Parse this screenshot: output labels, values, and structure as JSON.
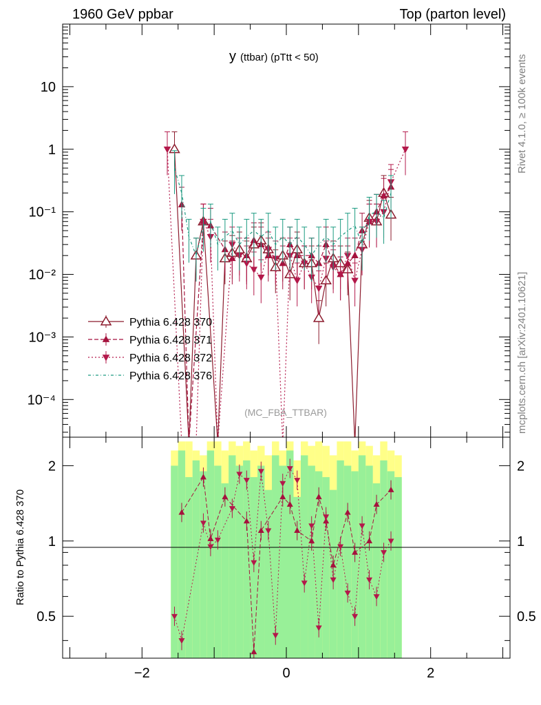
{
  "header": {
    "left_label": "1960 GeV ppbar",
    "right_label": "Top (parton level)",
    "side_label_top": "Rivet 4.1.0, ≥ 100k events",
    "side_label_bottom": "mcplots.cern.ch [arXiv:2401.10621]"
  },
  "chart_data": [
    {
      "type": "line",
      "panel": "main",
      "title_main": "y",
      "title_sub": "(ttbar)  (pTtt < 50)",
      "watermark": "(MC_FBA_TTBAR)",
      "yscale": "log",
      "xlim": [
        -3.1,
        3.1
      ],
      "ylim": [
        2.5e-05,
        100
      ],
      "ytick_labels": [
        {
          "value": 10,
          "label": "10"
        },
        {
          "value": 1,
          "label": "1"
        },
        {
          "value": 0.1,
          "label": "10⁻¹"
        },
        {
          "value": 0.01,
          "label": "10⁻²"
        },
        {
          "value": 0.001,
          "label": "10⁻³"
        },
        {
          "value": 0.0001,
          "label": "10⁻⁴"
        }
      ],
      "legend": [
        {
          "name": "Pythia 6.428 370",
          "color": "#8b1a2c",
          "marker": "triangle-open"
        },
        {
          "name": "Pythia 6.428 371",
          "color": "#a5123d",
          "marker": "triangle-up"
        },
        {
          "name": "Pythia 6.428 372",
          "color": "#b3184a",
          "marker": "triangle-down"
        },
        {
          "name": "Pythia 6.428 376",
          "color": "#1a9a80",
          "marker": "none"
        }
      ],
      "series": [
        {
          "name": "Pythia 6.428 370",
          "x": [
            -1.55,
            -1.35,
            -1.25,
            -1.15,
            -0.95,
            -0.85,
            -0.75,
            -0.65,
            -0.55,
            -0.45,
            -0.35,
            -0.25,
            -0.15,
            -0.05,
            0.05,
            0.15,
            0.25,
            0.35,
            0.45,
            0.55,
            0.65,
            0.75,
            0.85,
            0.95,
            1.05,
            1.15,
            1.25,
            1.35,
            1.45
          ],
          "y": [
            1.0,
            2e-05,
            0.02,
            0.07,
            2e-05,
            0.018,
            0.022,
            0.025,
            0.018,
            0.03,
            0.035,
            0.025,
            0.013,
            0.02,
            0.01,
            0.025,
            0.015,
            0.015,
            0.002,
            0.008,
            0.018,
            0.015,
            0.012,
            2e-05,
            0.03,
            0.08,
            0.07,
            0.2,
            0.09
          ]
        },
        {
          "name": "Pythia 6.428 371",
          "x": [
            -1.45,
            -1.35,
            -1.15,
            -1.05,
            -0.85,
            -0.75,
            -0.55,
            -0.45,
            -0.35,
            -0.25,
            -0.05,
            0.05,
            0.15,
            0.35,
            0.45,
            0.55,
            0.65,
            0.75,
            0.85,
            0.95,
            1.05,
            1.15,
            1.25,
            1.35,
            1.45
          ],
          "y": [
            0.13,
            2e-05,
            0.07,
            0.06,
            0.025,
            0.018,
            0.02,
            0.035,
            0.03,
            0.02,
            0.015,
            0.03,
            0.02,
            0.02,
            0.015,
            0.03,
            0.015,
            0.01,
            0.015,
            0.02,
            0.05,
            0.07,
            0.1,
            0.18,
            0.25
          ]
        },
        {
          "name": "Pythia 6.428 372",
          "x": [
            -1.65,
            -1.45,
            -1.35,
            -1.25,
            -1.15,
            -1.05,
            -0.95,
            -0.75,
            -0.65,
            -0.55,
            -0.45,
            -0.35,
            -0.25,
            -0.15,
            -0.05,
            0.05,
            0.15,
            0.25,
            0.35,
            0.45,
            0.55,
            0.65,
            0.75,
            0.85,
            0.95,
            1.05,
            1.15,
            1.25,
            1.35,
            1.45,
            1.65
          ],
          "y": [
            1.0,
            2e-05,
            2e-05,
            2e-05,
            0.07,
            0.04,
            2e-05,
            0.03,
            0.02,
            0.015,
            0.012,
            0.009,
            0.025,
            0.018,
            2e-05,
            0.02,
            0.008,
            0.015,
            0.009,
            0.006,
            0.018,
            0.013,
            0.01,
            0.02,
            0.008,
            0.025,
            0.07,
            0.07,
            0.1,
            0.3,
            1.0
          ]
        },
        {
          "name": "Pythia 6.428 376",
          "x": [
            -1.55,
            -1.45,
            -1.35,
            -1.25,
            -1.15,
            -1.05,
            -0.95,
            -0.85,
            -0.75,
            -0.65,
            -0.55,
            -0.45,
            -0.35,
            -0.25,
            -0.15,
            -0.05,
            0.05,
            0.15,
            0.25,
            0.35,
            0.45,
            0.55,
            0.65,
            0.75,
            0.85,
            0.95,
            1.05,
            1.15,
            1.25,
            1.35,
            1.45
          ],
          "y": [
            0.5,
            0.2,
            0.04,
            0.02,
            0.06,
            0.07,
            0.03,
            0.04,
            0.05,
            0.03,
            0.04,
            0.05,
            0.04,
            0.05,
            0.03,
            0.04,
            0.03,
            0.04,
            0.03,
            0.02,
            0.03,
            0.04,
            0.03,
            0.04,
            0.05,
            0.06,
            0.03,
            0.09,
            0.1,
            0.08,
            0.2
          ]
        }
      ]
    },
    {
      "type": "line",
      "panel": "ratio",
      "ylabel": "Ratio to Pythia 6.428 370",
      "xlim": [
        -3.1,
        3.1
      ],
      "ylim": [
        0.34,
        2.6
      ],
      "yscale": "log",
      "ytick_labels": [
        {
          "value": 2,
          "label": "2"
        },
        {
          "value": 1,
          "label": "1"
        },
        {
          "value": 0.5,
          "label": "0.5"
        }
      ],
      "xtick_labels": [
        {
          "value": -2,
          "label": "−2"
        },
        {
          "value": 0,
          "label": "0"
        },
        {
          "value": 2,
          "label": "2"
        }
      ],
      "reference_line": 1,
      "band_edges": [
        -1.6,
        -1.5,
        -1.4,
        -1.3,
        -1.2,
        -1.1,
        -1.0,
        -0.9,
        -0.8,
        -0.7,
        -0.6,
        -0.5,
        -0.4,
        -0.3,
        -0.2,
        -0.1,
        0.0,
        0.1,
        0.2,
        0.3,
        0.4,
        0.5,
        0.6,
        0.7,
        0.8,
        0.9,
        1.0,
        1.1,
        1.2,
        1.3,
        1.4,
        1.5,
        1.6
      ],
      "band_yellow_upper": [
        2.3,
        2.5,
        2.5,
        2.3,
        2.2,
        2.5,
        2.5,
        2.3,
        2.5,
        2.4,
        2.5,
        2.3,
        2.4,
        2.2,
        2.5,
        2.3,
        2.5,
        2.1,
        2.5,
        2.4,
        2.5,
        2.4,
        2.2,
        2.5,
        2.5,
        2.3,
        2.5,
        2.4,
        2.2,
        2.5,
        2.3,
        2.2
      ],
      "band_green_upper": [
        2.0,
        2.3,
        1.8,
        2.1,
        1.9,
        2.3,
        2.0,
        1.7,
        2.2,
        2.0,
        2.1,
        1.8,
        2.0,
        1.6,
        2.2,
        2.0,
        2.3,
        1.5,
        2.2,
        2.0,
        1.9,
        1.8,
        1.6,
        2.1,
        2.0,
        1.9,
        2.2,
        2.0,
        1.7,
        2.1,
        1.9,
        1.8
      ],
      "series": [
        {
          "name": "Pythia 6.428 371",
          "x": [
            -1.45,
            -1.15,
            -1.05,
            -0.85,
            -0.55,
            -0.45,
            -0.35,
            -0.05,
            0.05,
            0.15,
            0.35,
            0.45,
            0.55,
            0.65,
            0.85,
            0.95,
            1.15,
            1.25,
            1.45
          ],
          "y": [
            1.3,
            1.8,
            1.02,
            1.5,
            1.2,
            0.36,
            1.1,
            1.5,
            1.4,
            1.1,
            1.0,
            1.5,
            1.2,
            0.8,
            1.3,
            0.9,
            1.0,
            1.4,
            1.6
          ]
        },
        {
          "name": "Pythia 6.428 372",
          "x": [
            -1.55,
            -1.45,
            -1.15,
            -1.05,
            -0.95,
            -0.75,
            -0.65,
            -0.55,
            -0.45,
            -0.35,
            -0.25,
            -0.15,
            -0.05,
            0.05,
            0.15,
            0.25,
            0.35,
            0.45,
            0.55,
            0.65,
            0.75,
            0.85,
            0.95,
            1.05,
            1.15,
            1.25,
            1.35,
            1.45
          ],
          "y": [
            0.5,
            0.4,
            1.18,
            0.95,
            1.01,
            1.35,
            1.85,
            1.75,
            0.82,
            1.9,
            1.1,
            0.42,
            1.7,
            1.95,
            1.75,
            0.68,
            1.15,
            0.45,
            1.25,
            0.7,
            0.95,
            0.62,
            0.5,
            1.15,
            0.7,
            0.6,
            0.9,
            1.0
          ]
        }
      ]
    }
  ]
}
